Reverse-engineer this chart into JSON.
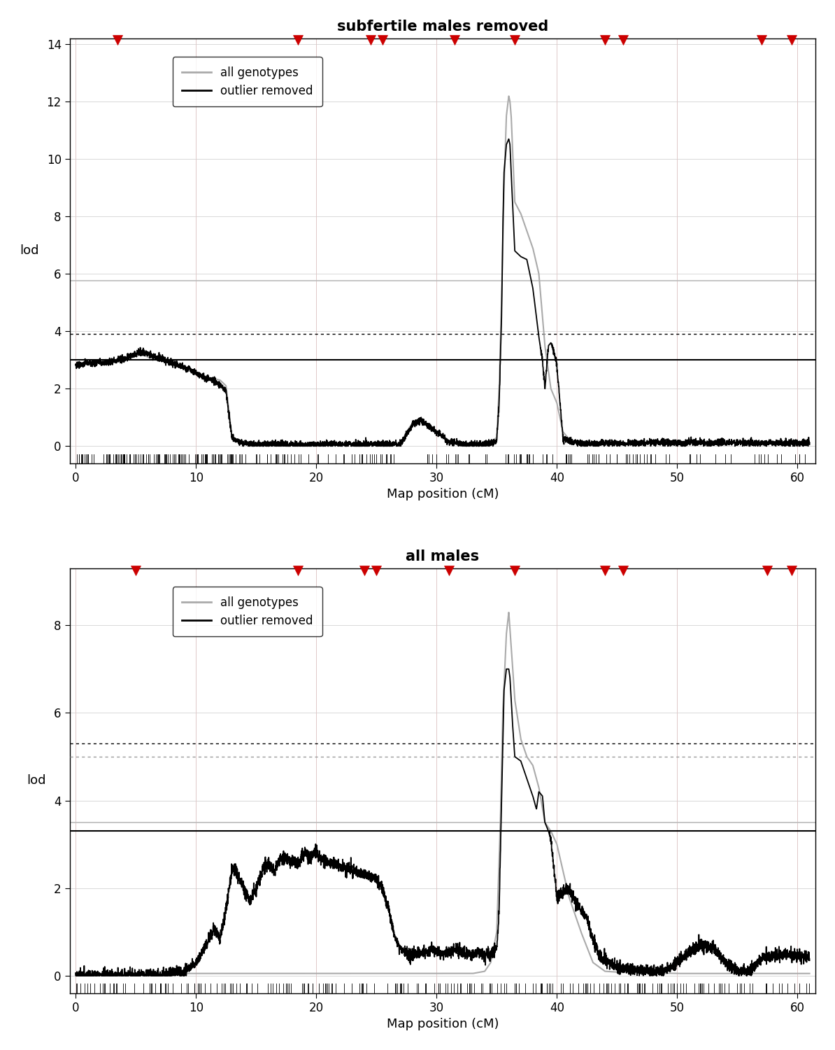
{
  "title1": "subfertile males removed",
  "title2": "all males",
  "xlabel": "Map position (cM)",
  "ylabel": "lod",
  "xlim": [
    -0.5,
    61.5
  ],
  "ylim1": [
    -0.6,
    14.2
  ],
  "ylim2": [
    -0.4,
    9.3
  ],
  "yticks1": [
    0,
    2,
    4,
    6,
    8,
    10,
    12,
    14
  ],
  "yticks2": [
    0,
    2,
    4,
    6,
    8
  ],
  "xticks": [
    0,
    10,
    20,
    30,
    40,
    50,
    60
  ],
  "hline1_black": 3.0,
  "hline1_gray": 5.75,
  "dotted_line1": 3.9,
  "hline2_black": 3.3,
  "hline2_gray": 3.5,
  "dotted_line2_black": 5.3,
  "dotted_line2_gray": 5.0,
  "marker_positions1": [
    3.5,
    18.5,
    24.5,
    25.5,
    31.5,
    36.5,
    44.0,
    45.5,
    57.0,
    59.5
  ],
  "marker_positions2": [
    5.0,
    18.5,
    24.0,
    25.0,
    31.0,
    36.5,
    44.0,
    45.5,
    57.5,
    59.5
  ],
  "legend_labels": [
    "all genotypes",
    "outlier removed"
  ],
  "legend_colors": [
    "#aaaaaa",
    "#000000"
  ],
  "bg_color": "#ffffff",
  "grid_color_major": "#d0d0d0",
  "grid_color_minor": "#e8e8e8",
  "marker_color": "#cc0000",
  "line_lw": 1.2
}
